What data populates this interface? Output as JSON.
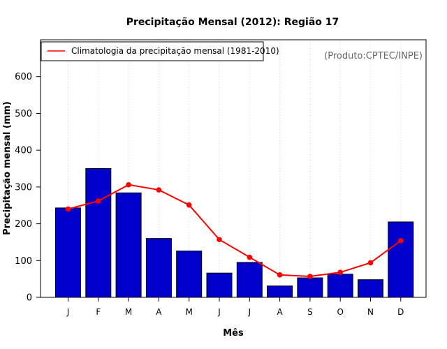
{
  "chart_data": {
    "type": "bar",
    "title": "Precipitação Mensal (2012): Região 17",
    "xlabel": "Mês",
    "ylabel": "Precipitação mensal (mm)",
    "credit": "(Produto:CPTEC/INPE)",
    "categories": [
      "J",
      "F",
      "M",
      "A",
      "M",
      "J",
      "J",
      "A",
      "S",
      "O",
      "N",
      "D"
    ],
    "ylim": [
      0,
      700
    ],
    "yticks": [
      0,
      100,
      200,
      300,
      400,
      500,
      600
    ],
    "series": [
      {
        "name": "Precipitação mensal 2012",
        "type": "bar",
        "color": "#0000cd",
        "values": [
          243,
          350,
          284,
          160,
          126,
          66,
          95,
          31,
          53,
          63,
          48,
          205
        ]
      },
      {
        "name": "Climatologia da precipitação mensal (1981-2010)",
        "type": "line",
        "color": "#ff0000",
        "values": [
          240,
          262,
          306,
          292,
          251,
          157,
          109,
          61,
          57,
          68,
          94,
          154
        ]
      }
    ],
    "legend": {
      "position": "top-left",
      "label": "Climatologia da precipitação mensal (1981-2010)"
    },
    "grid": "vertical-dotted"
  }
}
